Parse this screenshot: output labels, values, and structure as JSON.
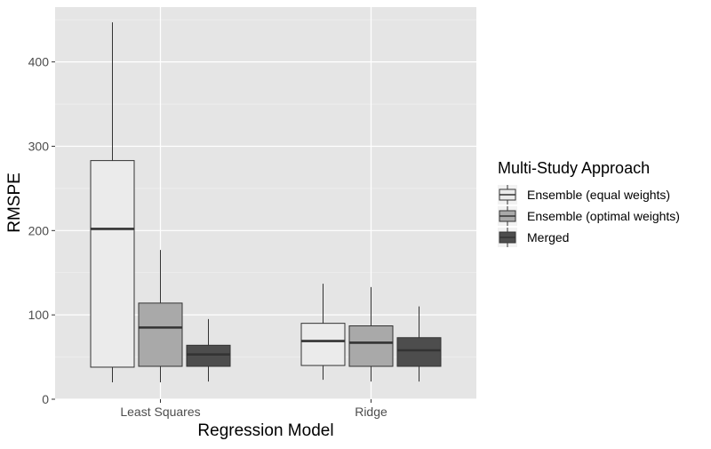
{
  "chart_data": {
    "type": "boxplot",
    "xlabel": "Regression Model",
    "ylabel": "RMSPE",
    "categories": [
      "Least Squares",
      "Ridge"
    ],
    "ylim": [
      0,
      465
    ],
    "yticks": [
      0,
      100,
      200,
      300,
      400
    ],
    "grid": true,
    "legend_position": "right",
    "legend_title": "Multi-Study Approach",
    "series": [
      {
        "name": "Ensemble (equal weights)",
        "color": "#ebebeb",
        "boxes": [
          {
            "min": 20,
            "q1": 38,
            "median": 202,
            "q3": 283,
            "max": 447
          },
          {
            "min": 23,
            "q1": 40,
            "median": 69,
            "q3": 90,
            "max": 137
          }
        ]
      },
      {
        "name": "Ensemble (optimal weights)",
        "color": "#a9a9a9",
        "boxes": [
          {
            "min": 20,
            "q1": 39,
            "median": 85,
            "q3": 114,
            "max": 177
          },
          {
            "min": 21,
            "q1": 39,
            "median": 67,
            "q3": 87,
            "max": 133
          }
        ]
      },
      {
        "name": "Merged",
        "color": "#4d4d4d",
        "boxes": [
          {
            "min": 21,
            "q1": 39,
            "median": 53,
            "q3": 64,
            "max": 95
          },
          {
            "min": 21,
            "q1": 39,
            "median": 58,
            "q3": 73,
            "max": 110
          }
        ]
      }
    ]
  }
}
